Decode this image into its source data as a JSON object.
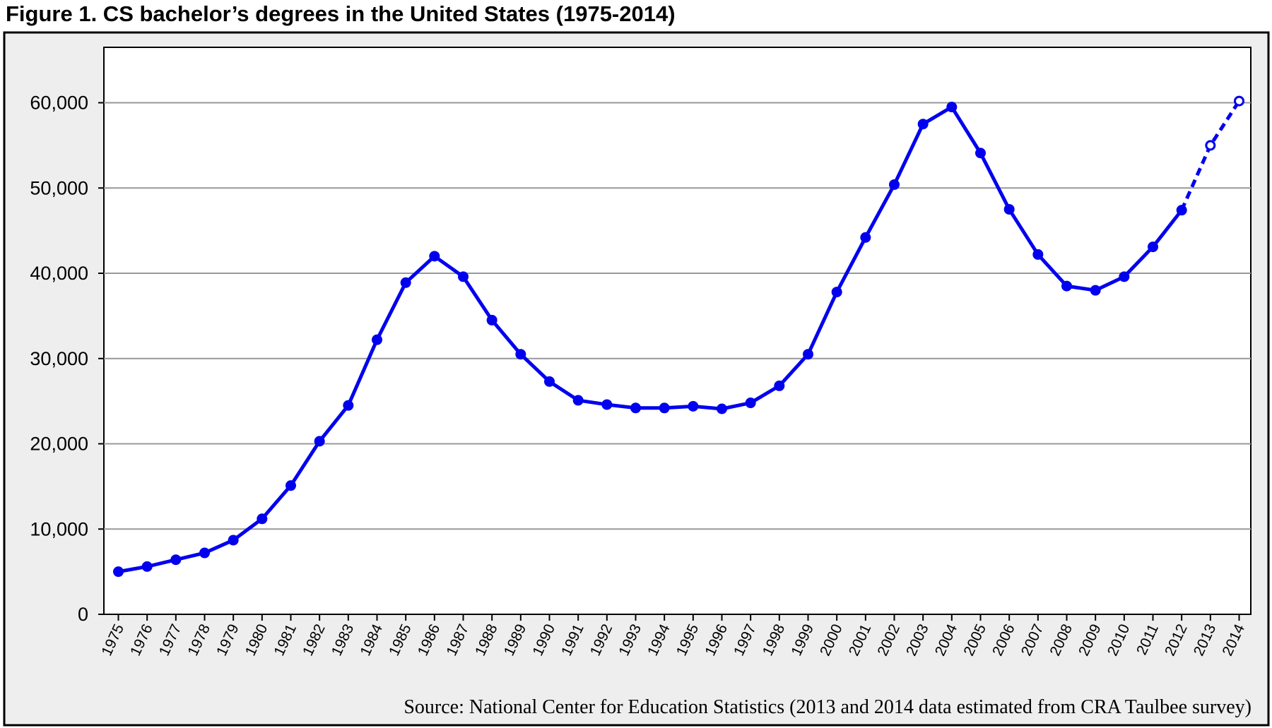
{
  "figure": {
    "title": "Figure 1. CS bachelor’s degrees in the United States (1975-2014)",
    "source": "Source: National Center for Education Statistics (2013 and 2014 data estimated from CRA Taulbee survey)"
  },
  "colors": {
    "series": "#0000ee",
    "frame_background": "#eeeeee",
    "plot_background": "#ffffff",
    "gridline": "#999999"
  },
  "chart_data": {
    "type": "line",
    "title": "Figure 1. CS bachelor’s degrees in the United States (1975-2014)",
    "xlabel": "",
    "ylabel": "",
    "ylim": [
      0,
      65000
    ],
    "grid": true,
    "legend": "none",
    "y_ticks": [
      0,
      10000,
      20000,
      30000,
      40000,
      50000,
      60000
    ],
    "y_tick_labels": [
      "0",
      "10,000",
      "20,000",
      "30,000",
      "40,000",
      "50,000",
      "60,000"
    ],
    "x": [
      "1975",
      "1976",
      "1977",
      "1978",
      "1979",
      "1980",
      "1981",
      "1982",
      "1983",
      "1984",
      "1985",
      "1986",
      "1987",
      "1988",
      "1989",
      "1990",
      "1991",
      "1992",
      "1993",
      "1994",
      "1995",
      "1996",
      "1997",
      "1998",
      "1999",
      "2000",
      "2001",
      "2002",
      "2003",
      "2004",
      "2005",
      "2006",
      "2007",
      "2008",
      "2009",
      "2010",
      "2011",
      "2012",
      "2013",
      "2014"
    ],
    "series": [
      {
        "values": [
          5000,
          5600,
          6400,
          7200,
          8700,
          11200,
          15100,
          20300,
          24500,
          32200,
          38900,
          42000,
          39600,
          34500,
          30500,
          27300,
          25100,
          24600,
          24200,
          24200,
          24400,
          24100,
          24800,
          26800,
          30500,
          37800,
          44200,
          50400,
          57500,
          59500,
          54100,
          47500,
          42200,
          38500,
          38000,
          39600,
          43100,
          47400,
          55000,
          60200
        ],
        "estimated_from_index": 38,
        "estimated_style": "dashed line, hollow markers"
      }
    ]
  }
}
